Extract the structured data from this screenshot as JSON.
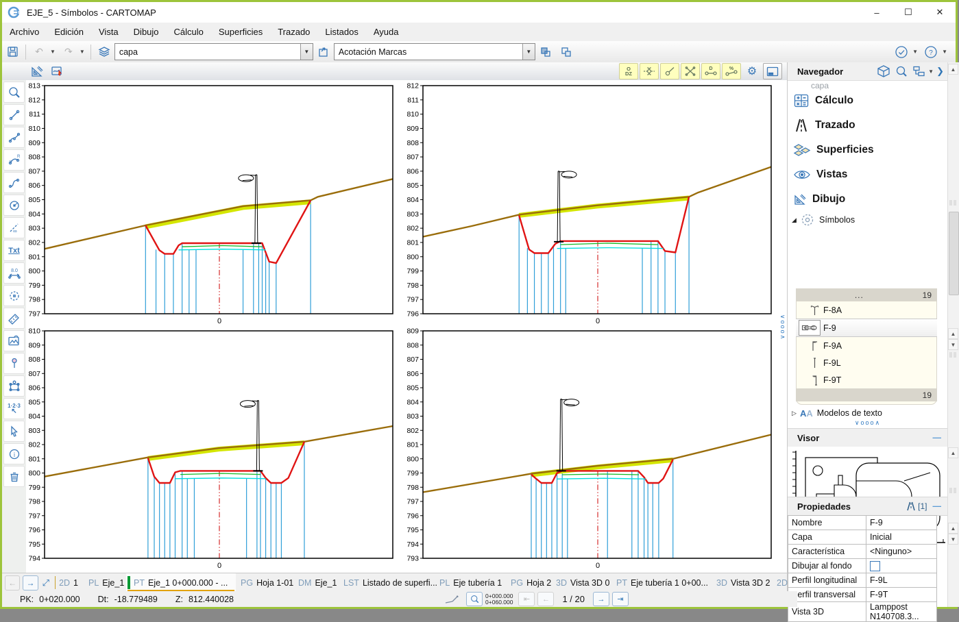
{
  "window": {
    "title": "EJE_5 - Símbolos - CARTOMAP",
    "minimize": "–",
    "maximize": "☐",
    "close": "✕"
  },
  "menu": {
    "items": [
      "Archivo",
      "Edición",
      "Vista",
      "Dibujo",
      "Cálculo",
      "Superficies",
      "Trazado",
      "Listados",
      "Ayuda"
    ]
  },
  "toolbar": {
    "left_icons": [
      "save-icon",
      "undo-icon",
      "redo-icon"
    ],
    "layer_combo": {
      "value": "capa",
      "icon": "layers-icon"
    },
    "style_combo": {
      "value": "Acotación Marcas",
      "icon": "frame-arrow-icon"
    },
    "order_icons": [
      "bring-front-icon",
      "send-back-icon"
    ],
    "right_icons": [
      "check-circle-icon",
      "help-circle-icon"
    ],
    "row2_left_icons": [
      "setsquare-pencil-icon",
      "quick-edit-icon"
    ],
    "toggles": [
      {
        "name": "dz-toggle",
        "icon": "dz-icon",
        "highlight": true
      },
      {
        "name": "node-elevation-toggle",
        "icon": "node-elev-icon",
        "highlight": true
      },
      {
        "name": "tangent-toggle",
        "icon": "tangent-icon",
        "highlight": true
      },
      {
        "name": "intersection-toggle",
        "icon": "cross-icon",
        "highlight": true
      },
      {
        "name": "distance-toggle",
        "icon": "dist-d-icon",
        "highlight": true
      },
      {
        "name": "percent-toggle",
        "icon": "dist-pct-icon",
        "highlight": true
      },
      {
        "name": "settings-button",
        "icon": "gear-icon",
        "highlight": false
      },
      {
        "name": "window-button",
        "icon": "window-icon",
        "highlight": false
      }
    ],
    "dz_text": {
      "top": "O",
      "bottom": "DZ"
    },
    "d_text": "D",
    "pct_text": "%"
  },
  "left_toolbar": [
    "zoom-icon",
    "line-icon",
    "polyline-icon",
    "arc-radius-icon",
    "spline-icon",
    "circle-icon",
    "construction-line-icon",
    "text-icon",
    "dimension-icon",
    "point-cloud-icon",
    "ruler-icon",
    "image-icon",
    "pin-icon",
    "polygon-icon",
    "numbering-icon",
    "select-arrow-icon",
    "info-icon",
    "trash-icon"
  ],
  "navigator": {
    "title": "Navegador",
    "header_icons": [
      "package-icon",
      "search-icon",
      "tree-icon",
      "chevron-right-icon"
    ],
    "clipped_item": "capa",
    "sections": [
      {
        "label": "Cálculo",
        "icon": "calc-icon"
      },
      {
        "label": "Trazado",
        "icon": "road-icon"
      },
      {
        "label": "Superficies",
        "icon": "surfaces-icon"
      },
      {
        "label": "Vistas",
        "icon": "eye-icon"
      },
      {
        "label": "Dibujo",
        "icon": "setsquare-pencil-icon"
      }
    ],
    "symbols": {
      "label": "Símbolos",
      "more": "...",
      "count_top": "19",
      "count_bottom": "19",
      "items": [
        {
          "name": "F-8A",
          "icon": "sym-f8a",
          "selected": false
        },
        {
          "name": "F-9",
          "icon": "sym-f9",
          "selected": true
        },
        {
          "name": "F-9A",
          "icon": "sym-f9a",
          "selected": false
        },
        {
          "name": "F-9L",
          "icon": "sym-f9l",
          "selected": false
        },
        {
          "name": "F-9T",
          "icon": "sym-f9t",
          "selected": false
        }
      ]
    },
    "text_models_label": "Modelos de texto",
    "splitter_glyphs": "∨ooo∧"
  },
  "visor": {
    "title": "Visor",
    "minimize": "—"
  },
  "properties": {
    "title": "Propiedades",
    "badge": "[1]",
    "minimize": "—",
    "rows": [
      {
        "label": "Nombre",
        "value": "F-9",
        "type": "text"
      },
      {
        "label": "Capa",
        "value": "Inicial",
        "type": "text"
      },
      {
        "label": "Característica",
        "value": "<Ninguno>",
        "type": "text"
      },
      {
        "label": "Dibujar al fondo",
        "value": "",
        "type": "checkbox"
      },
      {
        "label": "Perfil longitudinal",
        "value": "F-9L",
        "type": "text"
      },
      {
        "label": "Perfil transversal",
        "value": "F-9T",
        "type": "text"
      },
      {
        "label": "Vista 3D",
        "value": "Lamppost N140708.3...",
        "type": "text"
      }
    ]
  },
  "tabbar": {
    "back": "←",
    "forward": "→",
    "expand": "⤢",
    "tabs": [
      {
        "code": "2D",
        "label": "1",
        "color": "#c9a22c",
        "active": false,
        "width": 44
      },
      {
        "code": "PL",
        "label": "Eje_1",
        "color": "#ff3333",
        "active": false,
        "width": 62
      },
      {
        "code": "PT",
        "label": "Eje_1 0+000.000 - ...",
        "color": "#009933",
        "active": true,
        "width": 160
      },
      {
        "code": "PG",
        "label": "Hoja 1-01",
        "color": "#b8860b",
        "active": false,
        "width": 84
      },
      {
        "code": "DM",
        "label": "Eje_1",
        "color": "#9933ff",
        "active": false,
        "width": 66
      },
      {
        "code": "LST",
        "label": "Listado de superfi...",
        "color": "#4d4d4d",
        "active": false,
        "width": 140
      },
      {
        "code": "PL",
        "label": "Eje tubería 1",
        "color": "#ff3333",
        "active": false,
        "width": 104
      },
      {
        "code": "PG",
        "label": "Hoja 2",
        "color": "#b8860b",
        "active": false,
        "width": 66
      },
      {
        "code": "3D",
        "label": "Vista 3D 0",
        "color": "#3355ff",
        "active": false,
        "width": 88
      },
      {
        "code": "PT",
        "label": "Eje tubería 1 0+00...",
        "color": "#009933",
        "active": false,
        "width": 146
      },
      {
        "code": "3D",
        "label": "Vista 3D 2",
        "color": "#3355ff",
        "active": false,
        "width": 88
      },
      {
        "code": "2D",
        "label": "",
        "color": "#c9a22c",
        "active": false,
        "width": 22
      }
    ]
  },
  "status": {
    "pk_label": "PK:",
    "pk": "0+020.000",
    "dt_label": "Dt:",
    "dt": "-18.779489",
    "z_label": "Z:",
    "z": "812.440028",
    "range_top": "0+000.000",
    "range_bottom": "0+060.000",
    "page": "1 / 20",
    "first": "⇤",
    "prev": "←",
    "next": "→",
    "last": "⇥"
  },
  "chart_style": {
    "terrain": "#9a6d0b",
    "band": "#d4e600",
    "design": "#e01414",
    "green": "#16b826",
    "cyan": "#00dede",
    "vertical": "#2f9fd8",
    "centerline": "#cc0000",
    "axis": "#000000"
  },
  "chart_data": [
    {
      "id": "cross-section-top-left",
      "type": "line",
      "x_tick_label": "0",
      "ylim": [
        797,
        813
      ],
      "centerline_x": 50.2,
      "centerline_top_z": 802.0,
      "terrain": [
        [
          0,
          801.55
        ],
        [
          29,
          803.2
        ],
        [
          57,
          804.55
        ],
        [
          76.4,
          804.95
        ],
        [
          78.5,
          805.2
        ],
        [
          100,
          806.45
        ]
      ],
      "band": [
        [
          29,
          803.1
        ],
        [
          57,
          804.45
        ],
        [
          76.4,
          804.85
        ]
      ],
      "design": [
        [
          29,
          803.2
        ],
        [
          33,
          801.45
        ],
        [
          34.5,
          801.2
        ],
        [
          37,
          801.2
        ],
        [
          38.5,
          801.8
        ],
        [
          39.5,
          801.95
        ],
        [
          62.5,
          801.95
        ],
        [
          64.5,
          800.65
        ],
        [
          66.5,
          800.55
        ],
        [
          76.4,
          804.95
        ]
      ],
      "green": [
        [
          39.5,
          801.7
        ],
        [
          51,
          801.78
        ],
        [
          62.5,
          801.7
        ]
      ],
      "cyan": [
        [
          38.5,
          801.48
        ],
        [
          51,
          801.53
        ],
        [
          63.5,
          801.48
        ]
      ],
      "verticals": [
        [
          29,
          803.2
        ],
        [
          32,
          801.5
        ],
        [
          34.5,
          801.2
        ],
        [
          37,
          801.2
        ],
        [
          39.5,
          801.95
        ],
        [
          41.5,
          801.48
        ],
        [
          43.5,
          801.48
        ],
        [
          57,
          801.48
        ],
        [
          60,
          801.95
        ],
        [
          61.5,
          801.95
        ],
        [
          62.5,
          801.95
        ],
        [
          63.5,
          801.2
        ],
        [
          64.5,
          800.65
        ],
        [
          66.5,
          800.55
        ],
        [
          76.4,
          804.95
        ]
      ],
      "lamppost": {
        "x": 60.8,
        "base_z": 801.95,
        "top_z": 806.75,
        "dir": -1
      }
    },
    {
      "id": "cross-section-top-right",
      "type": "line",
      "x_tick_label": "0",
      "ylim": [
        796,
        812
      ],
      "centerline_x": 50.2,
      "centerline_top_z": 801.1,
      "terrain": [
        [
          0,
          801.4
        ],
        [
          14,
          802.15
        ],
        [
          27.6,
          802.95
        ],
        [
          50,
          803.6
        ],
        [
          76.4,
          804.2
        ],
        [
          79,
          804.5
        ],
        [
          100,
          806.3
        ]
      ],
      "band": [
        [
          27.6,
          802.9
        ],
        [
          50,
          803.55
        ],
        [
          76.4,
          804.12
        ]
      ],
      "design": [
        [
          27.6,
          802.9
        ],
        [
          30.5,
          800.5
        ],
        [
          32,
          800.25
        ],
        [
          36,
          800.25
        ],
        [
          38,
          800.9
        ],
        [
          39.5,
          801.1
        ],
        [
          67.5,
          801.1
        ],
        [
          69.5,
          800.4
        ],
        [
          72.5,
          800.3
        ],
        [
          76.4,
          804.2
        ]
      ],
      "green": [
        [
          39.5,
          800.85
        ],
        [
          53,
          800.95
        ],
        [
          67.5,
          800.85
        ]
      ],
      "cyan": [
        [
          38.5,
          800.58
        ],
        [
          53,
          800.63
        ],
        [
          69,
          800.58
        ]
      ],
      "verticals": [
        [
          27.6,
          802.9
        ],
        [
          30,
          800.6
        ],
        [
          32,
          800.25
        ],
        [
          34,
          800.25
        ],
        [
          36,
          800.25
        ],
        [
          37.5,
          800.8
        ],
        [
          39.5,
          801.1
        ],
        [
          41,
          800.58
        ],
        [
          63,
          800.58
        ],
        [
          65.5,
          801.1
        ],
        [
          67.5,
          801.1
        ],
        [
          69.5,
          800.4
        ],
        [
          72.5,
          800.3
        ],
        [
          76.4,
          804.2
        ]
      ],
      "lamppost": {
        "x": 39.0,
        "base_z": 801.05,
        "top_z": 806.0,
        "dir": 1
      }
    },
    {
      "id": "cross-section-bottom-left",
      "type": "line",
      "x_tick_label": "0",
      "ylim": [
        794,
        810
      ],
      "centerline_x": 50.2,
      "centerline_top_z": 800.15,
      "terrain": [
        [
          0,
          799.75
        ],
        [
          29.7,
          801.1
        ],
        [
          50,
          801.75
        ],
        [
          74.6,
          802.2
        ],
        [
          100,
          803.3
        ]
      ],
      "band": [
        [
          29.7,
          801.02
        ],
        [
          50,
          801.68
        ],
        [
          74.6,
          802.12
        ]
      ],
      "design": [
        [
          29.7,
          801.05
        ],
        [
          31.5,
          799.75
        ],
        [
          33,
          799.3
        ],
        [
          36,
          799.3
        ],
        [
          37.5,
          800.05
        ],
        [
          39,
          800.15
        ],
        [
          62,
          800.15
        ],
        [
          63.5,
          799.65
        ],
        [
          65,
          799.3
        ],
        [
          68,
          799.3
        ],
        [
          70,
          799.65
        ],
        [
          74.6,
          802.2
        ]
      ],
      "green": [
        [
          39,
          799.9
        ],
        [
          51,
          799.97
        ],
        [
          62,
          799.9
        ]
      ],
      "cyan": [
        [
          37.5,
          799.6
        ],
        [
          51,
          799.65
        ],
        [
          63.5,
          799.6
        ]
      ],
      "verticals": [
        [
          29.7,
          801.05
        ],
        [
          31.5,
          799.75
        ],
        [
          33,
          799.3
        ],
        [
          34.5,
          799.3
        ],
        [
          36,
          799.3
        ],
        [
          37.5,
          800.05
        ],
        [
          39.5,
          800.15
        ],
        [
          41,
          799.6
        ],
        [
          43,
          799.6
        ],
        [
          58,
          799.6
        ],
        [
          61,
          800.15
        ],
        [
          62,
          800.15
        ],
        [
          63.5,
          799.65
        ],
        [
          65,
          799.3
        ],
        [
          66.5,
          799.3
        ],
        [
          68,
          799.3
        ],
        [
          74.6,
          802.2
        ]
      ],
      "lamppost": {
        "x": 61.3,
        "base_z": 800.15,
        "top_z": 805.1,
        "dir": -1
      }
    },
    {
      "id": "cross-section-bottom-right",
      "type": "line",
      "x_tick_label": "0",
      "ylim": [
        793,
        809
      ],
      "centerline_x": 50.2,
      "centerline_top_z": 799.15,
      "terrain": [
        [
          0,
          797.65
        ],
        [
          31.1,
          798.95
        ],
        [
          50,
          799.5
        ],
        [
          71.8,
          800.0
        ],
        [
          100,
          801.7
        ]
      ],
      "band": [
        [
          31.1,
          798.88
        ],
        [
          50,
          799.42
        ],
        [
          71.8,
          799.92
        ]
      ],
      "design": [
        [
          31.1,
          798.9
        ],
        [
          32.5,
          798.6
        ],
        [
          34,
          798.3
        ],
        [
          37,
          798.3
        ],
        [
          38.5,
          799.0
        ],
        [
          40,
          799.15
        ],
        [
          61.8,
          799.15
        ],
        [
          63.5,
          798.7
        ],
        [
          64.6,
          798.3
        ],
        [
          67.7,
          798.3
        ],
        [
          69,
          798.6
        ],
        [
          71.8,
          799.95
        ]
      ],
      "green": [
        [
          40,
          798.88
        ],
        [
          52,
          798.93
        ],
        [
          62,
          798.88
        ]
      ],
      "cyan": [
        [
          38.5,
          798.58
        ],
        [
          52,
          798.63
        ],
        [
          64,
          798.58
        ]
      ],
      "verticals": [
        [
          31.1,
          798.9
        ],
        [
          32.5,
          798.6
        ],
        [
          34,
          798.3
        ],
        [
          35.5,
          798.3
        ],
        [
          37,
          798.3
        ],
        [
          38.5,
          799.0
        ],
        [
          40,
          799.15
        ],
        [
          41.5,
          798.58
        ],
        [
          53,
          799.15
        ],
        [
          60,
          799.15
        ],
        [
          61.8,
          799.15
        ],
        [
          63.5,
          798.7
        ],
        [
          64.6,
          798.3
        ],
        [
          66,
          798.3
        ],
        [
          67.7,
          798.3
        ],
        [
          71.8,
          799.95
        ]
      ],
      "lamppost": {
        "x": 39.7,
        "base_z": 799.15,
        "top_z": 804.2,
        "dir": 1
      }
    }
  ]
}
